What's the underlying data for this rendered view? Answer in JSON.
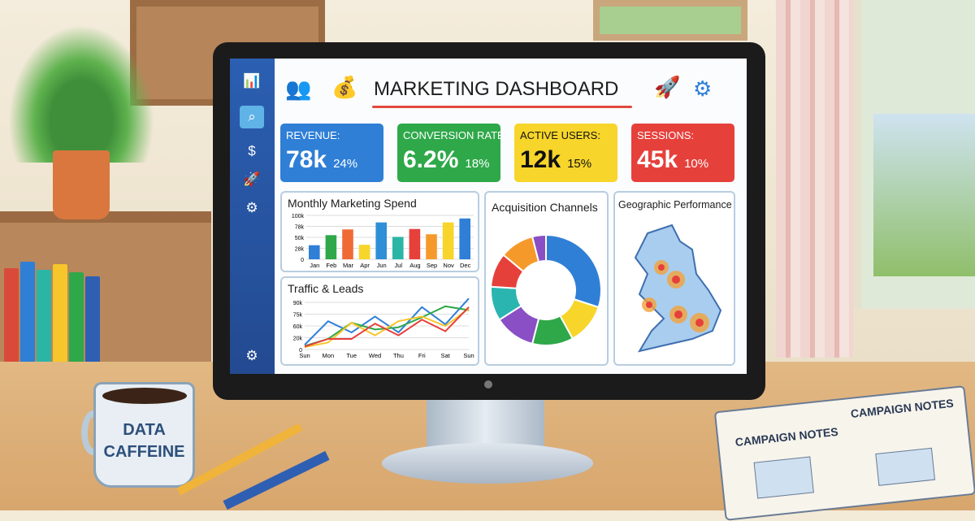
{
  "dashboard": {
    "title": "MARKETING DASHBOARD",
    "header_icons": [
      "users-icon",
      "money-bag-icon",
      "rocket-icon",
      "gears-icon"
    ],
    "sidebar": [
      {
        "icon": "bar-chart-icon"
      },
      {
        "icon": "search-icon",
        "active": true
      },
      {
        "icon": "money-bag-icon"
      },
      {
        "icon": "rocket-icon"
      },
      {
        "icon": "gears-icon"
      },
      {
        "icon": "settings-icon"
      }
    ],
    "kpis": [
      {
        "label": "REVENUE:",
        "value": "78k",
        "change": "24%",
        "color": "#2f7fd6"
      },
      {
        "label": "CONVERSION RATE:",
        "value": "6.2%",
        "change": "18%",
        "color": "#2fa84a"
      },
      {
        "label": "ACTIVE USERS:",
        "value": "12k",
        "change": "15%",
        "color": "#f7d52a"
      },
      {
        "label": "SESSIONS:",
        "value": "45k",
        "change": "10%",
        "color": "#e6403b"
      }
    ],
    "panels": {
      "spend": "Monthly Marketing Spend",
      "traffic": "Traffic & Leads",
      "channels": "Acquisition Channels",
      "geo": "Geographic Performance"
    }
  },
  "chart_data": [
    {
      "type": "bar",
      "title": "Monthly Marketing Spend",
      "categories": [
        "Jan",
        "Feb",
        "Mar",
        "Apr",
        "Jun",
        "Jul",
        "Aug",
        "Sep",
        "Nov",
        "Dec"
      ],
      "values": [
        32,
        55,
        68,
        33,
        84,
        51,
        69,
        57,
        84,
        93
      ],
      "yticks": [
        "0",
        "28k",
        "50k",
        "78k",
        "100k"
      ],
      "ylim": [
        0,
        100
      ],
      "colors": [
        "#2f7fd6",
        "#2fa84a",
        "#f06a35",
        "#f7d52a",
        "#2f8fd6",
        "#2bb5a5",
        "#e6403b",
        "#f59a2a",
        "#f7d52a",
        "#2f7fd6"
      ]
    },
    {
      "type": "line",
      "title": "Traffic & Leads",
      "categories": [
        "Sun",
        "Mon",
        "Tue",
        "Wed",
        "Thu",
        "Fri",
        "Sat",
        "Sun"
      ],
      "yticks": [
        "0",
        "20k",
        "60k",
        "75k",
        "90k"
      ],
      "series": [
        {
          "color": "#2f7fd6",
          "values": [
            8,
            66,
            38,
            72,
            38,
            84,
            62,
            95
          ]
        },
        {
          "color": "#2fa84a",
          "values": [
            6,
            18,
            64,
            48,
            55,
            71,
            85,
            80
          ]
        },
        {
          "color": "#f7c62a",
          "values": [
            4,
            12,
            64,
            28,
            66,
            72,
            60,
            82
          ]
        },
        {
          "color": "#e6403b",
          "values": [
            5,
            18,
            18,
            63,
            28,
            68,
            42,
            84
          ]
        }
      ]
    },
    {
      "type": "pie",
      "title": "Acquisition Channels",
      "donut": true,
      "values": [
        30,
        12,
        12,
        12,
        10,
        10,
        10,
        4
      ],
      "colors": [
        "#2f7fd6",
        "#f7d52a",
        "#2fa84a",
        "#8a4fc4",
        "#2bb5b0",
        "#e6403b",
        "#f59a2a",
        "#8a4fc4"
      ]
    }
  ],
  "mug": {
    "line1": "DATA",
    "line2": "CAFFEINE"
  },
  "notebook": {
    "left": "CAMPAIGN NOTES",
    "right": "CAMPAIGN NOTES"
  }
}
